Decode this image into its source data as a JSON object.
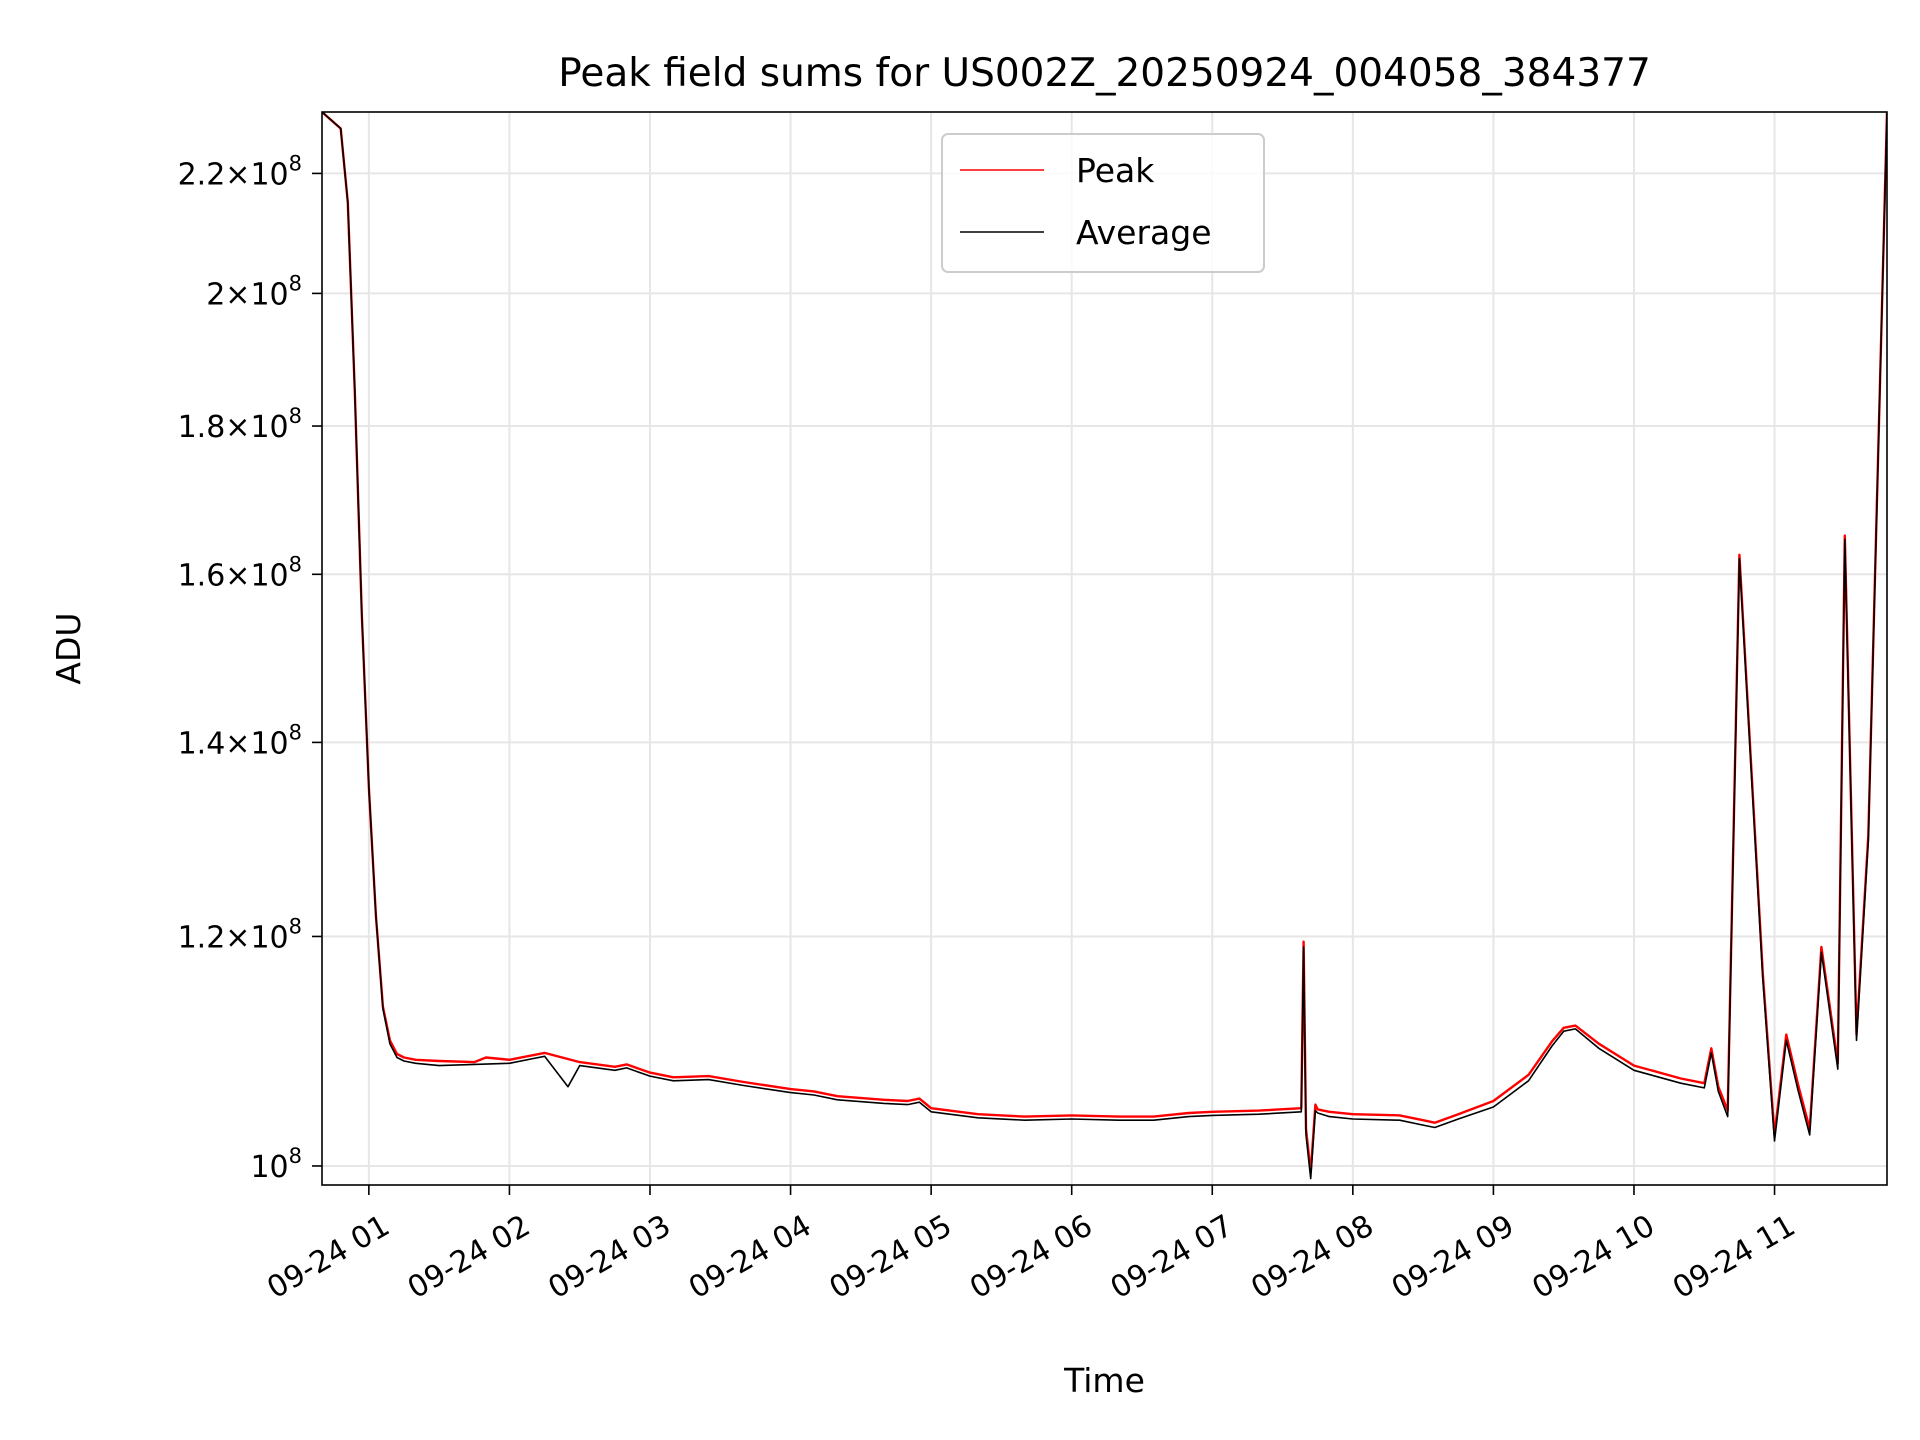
{
  "chart_data": {
    "type": "line",
    "title": "Peak field sums for US002Z_20250924_004058_384377",
    "xlabel": "Time",
    "ylabel": "ADU",
    "yscale": "log",
    "xlim": [
      "09-24 00:40",
      "09-24 11:48"
    ],
    "ylim": [
      98500000,
      231000000
    ],
    "grid": true,
    "legend_position": "upper-center",
    "x_ticks": [
      {
        "t": "09-24 01:00",
        "label": "09-24 01"
      },
      {
        "t": "09-24 02:00",
        "label": "09-24 02"
      },
      {
        "t": "09-24 03:00",
        "label": "09-24 03"
      },
      {
        "t": "09-24 04:00",
        "label": "09-24 04"
      },
      {
        "t": "09-24 05:00",
        "label": "09-24 05"
      },
      {
        "t": "09-24 06:00",
        "label": "09-24 06"
      },
      {
        "t": "09-24 07:00",
        "label": "09-24 07"
      },
      {
        "t": "09-24 08:00",
        "label": "09-24 08"
      },
      {
        "t": "09-24 09:00",
        "label": "09-24 09"
      },
      {
        "t": "09-24 10:00",
        "label": "09-24 10"
      },
      {
        "t": "09-24 11:00",
        "label": "09-24 11"
      }
    ],
    "y_ticks": [
      {
        "value": 100000000,
        "mantissa": "",
        "exponent": "8"
      },
      {
        "value": 120000000,
        "mantissa": "1.2",
        "exponent": "8"
      },
      {
        "value": 140000000,
        "mantissa": "1.4",
        "exponent": "8"
      },
      {
        "value": 160000000,
        "mantissa": "1.6",
        "exponent": "8"
      },
      {
        "value": 180000000,
        "mantissa": "1.8",
        "exponent": "8"
      },
      {
        "value": 200000000,
        "mantissa": "2",
        "exponent": "8"
      },
      {
        "value": 220000000,
        "mantissa": "2.2",
        "exponent": "8"
      }
    ],
    "series": [
      {
        "name": "Peak",
        "color": "#ff0000",
        "x": [
          "09-24 00:40",
          "09-24 00:48",
          "09-24 00:51",
          "09-24 00:54",
          "09-24 00:57",
          "09-24 01:00",
          "09-24 01:03",
          "09-24 01:06",
          "09-24 01:09",
          "09-24 01:12",
          "09-24 01:15",
          "09-24 01:20",
          "09-24 01:30",
          "09-24 01:45",
          "09-24 01:50",
          "09-24 02:00",
          "09-24 02:10",
          "09-24 02:15",
          "09-24 02:30",
          "09-24 02:45",
          "09-24 02:50",
          "09-24 03:00",
          "09-24 03:10",
          "09-24 03:25",
          "09-24 03:40",
          "09-24 04:00",
          "09-24 04:10",
          "09-24 04:20",
          "09-24 04:40",
          "09-24 04:50",
          "09-24 04:55",
          "09-24 05:00",
          "09-24 05:20",
          "09-24 05:40",
          "09-24 06:00",
          "09-24 06:20",
          "09-24 06:35",
          "09-24 06:50",
          "09-24 07:00",
          "09-24 07:20",
          "09-24 07:38",
          "09-24 07:39",
          "09-24 07:40",
          "09-24 07:42",
          "09-24 07:44",
          "09-24 07:45",
          "09-24 07:50",
          "09-24 08:00",
          "09-24 08:20",
          "09-24 08:30",
          "09-24 08:35",
          "09-24 08:45",
          "09-24 09:00",
          "09-24 09:15",
          "09-24 09:25",
          "09-24 09:30",
          "09-24 09:35",
          "09-24 09:45",
          "09-24 10:00",
          "09-24 10:20",
          "09-24 10:30",
          "09-24 10:33",
          "09-24 10:36",
          "09-24 10:40",
          "09-24 10:45",
          "09-24 10:55",
          "09-24 11:00",
          "09-24 11:05",
          "09-24 11:10",
          "09-24 11:15",
          "09-24 11:20",
          "09-24 11:27",
          "09-24 11:30",
          "09-24 11:35",
          "09-24 11:40",
          "09-24 11:48"
        ],
        "y": [
          231000000,
          228000000,
          215000000,
          185000000,
          155000000,
          135000000,
          122000000,
          113500000,
          110500000,
          109300000,
          109000000,
          108800000,
          108700000,
          108600000,
          109000000,
          108800000,
          109200000,
          109400000,
          108600000,
          108200000,
          108400000,
          107700000,
          107300000,
          107400000,
          106900000,
          106300000,
          106100000,
          105700000,
          105400000,
          105300000,
          105500000,
          104700000,
          104200000,
          104000000,
          104100000,
          104000000,
          104000000,
          104300000,
          104400000,
          104500000,
          104700000,
          119500000,
          103000000,
          99500000,
          105000000,
          104600000,
          104400000,
          104200000,
          104100000,
          103700000,
          103500000,
          104200000,
          105300000,
          107500000,
          110400000,
          111600000,
          111800000,
          110200000,
          108300000,
          107200000,
          106800000,
          109800000,
          106500000,
          104500000,
          162500000,
          116500000,
          102500000,
          111000000,
          106700000,
          103000000,
          119000000,
          108500000,
          165000000,
          111000000,
          130000000,
          231000000
        ]
      },
      {
        "name": "Average",
        "color": "#000000",
        "x": [
          "09-24 00:40",
          "09-24 00:48",
          "09-24 00:51",
          "09-24 00:54",
          "09-24 00:57",
          "09-24 01:00",
          "09-24 01:03",
          "09-24 01:06",
          "09-24 01:09",
          "09-24 01:12",
          "09-24 01:15",
          "09-24 01:20",
          "09-24 01:30",
          "09-24 01:45",
          "09-24 02:00",
          "09-24 02:10",
          "09-24 02:15",
          "09-24 02:25",
          "09-24 02:30",
          "09-24 02:45",
          "09-24 02:50",
          "09-24 03:00",
          "09-24 03:10",
          "09-24 03:25",
          "09-24 03:40",
          "09-24 04:00",
          "09-24 04:10",
          "09-24 04:20",
          "09-24 04:40",
          "09-24 04:50",
          "09-24 04:55",
          "09-24 05:00",
          "09-24 05:20",
          "09-24 05:40",
          "09-24 06:00",
          "09-24 06:20",
          "09-24 06:35",
          "09-24 06:50",
          "09-24 07:00",
          "09-24 07:20",
          "09-24 07:38",
          "09-24 07:39",
          "09-24 07:40",
          "09-24 07:42",
          "09-24 07:44",
          "09-24 07:45",
          "09-24 07:50",
          "09-24 08:00",
          "09-24 08:20",
          "09-24 08:30",
          "09-24 08:35",
          "09-24 08:45",
          "09-24 09:00",
          "09-24 09:15",
          "09-24 09:25",
          "09-24 09:30",
          "09-24 09:35",
          "09-24 09:45",
          "09-24 10:00",
          "09-24 10:20",
          "09-24 10:30",
          "09-24 10:33",
          "09-24 10:36",
          "09-24 10:40",
          "09-24 10:45",
          "09-24 10:55",
          "09-24 11:00",
          "09-24 11:05",
          "09-24 11:10",
          "09-24 11:15",
          "09-24 11:20",
          "09-24 11:27",
          "09-24 11:30",
          "09-24 11:35",
          "09-24 11:40",
          "09-24 11:48"
        ],
        "y": [
          231000000,
          228000000,
          215000000,
          185000000,
          155000000,
          135000000,
          122000000,
          113300000,
          110200000,
          109000000,
          108700000,
          108500000,
          108300000,
          108400000,
          108500000,
          108900000,
          109100000,
          106500000,
          108300000,
          107900000,
          108100000,
          107400000,
          107000000,
          107100000,
          106600000,
          106000000,
          105800000,
          105400000,
          105100000,
          105000000,
          105200000,
          104400000,
          103900000,
          103700000,
          103800000,
          103700000,
          103700000,
          104000000,
          104100000,
          104200000,
          104400000,
          119000000,
          102500000,
          99000000,
          104500000,
          104300000,
          104000000,
          103800000,
          103700000,
          103300000,
          103100000,
          103800000,
          104800000,
          107000000,
          110000000,
          111300000,
          111500000,
          109800000,
          107900000,
          106800000,
          106400000,
          109400000,
          106100000,
          104000000,
          162000000,
          116000000,
          102000000,
          110500000,
          106200000,
          102500000,
          118500000,
          108000000,
          164500000,
          110500000,
          129500000,
          231000000
        ]
      }
    ]
  }
}
